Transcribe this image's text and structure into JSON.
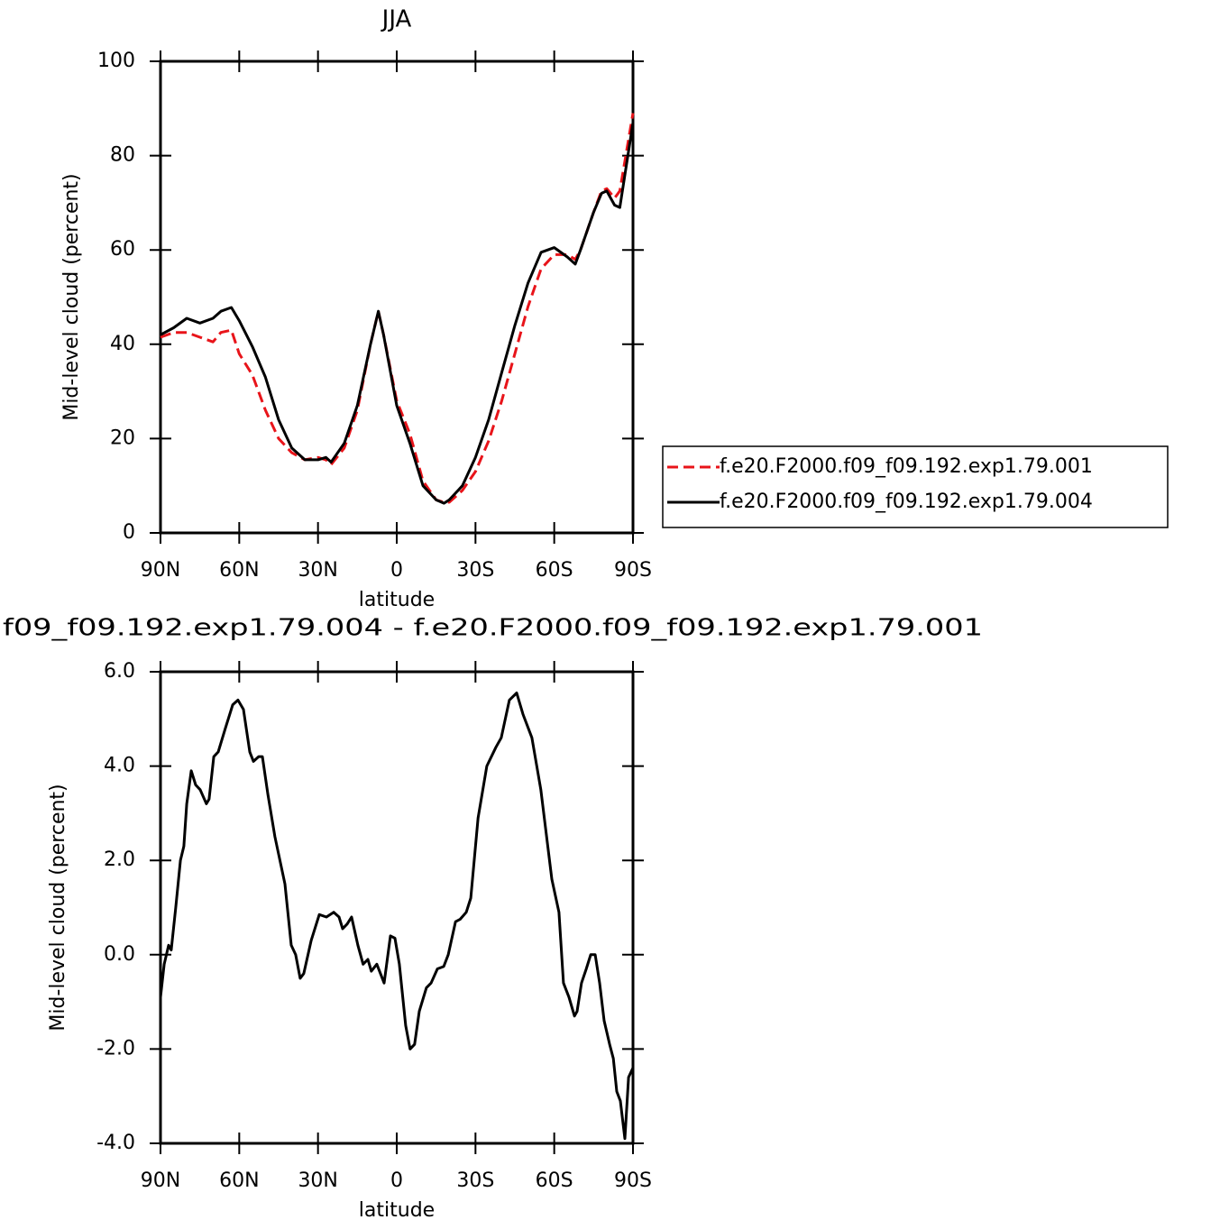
{
  "chart_data": [
    {
      "type": "line",
      "title": "JJA",
      "xlabel": "latitude",
      "ylabel": "Mid-level cloud (percent)",
      "xlim": [
        90,
        -90
      ],
      "ylim": [
        0,
        100
      ],
      "xticks": [
        {
          "value": 90,
          "label": "90N"
        },
        {
          "value": 60,
          "label": "60N"
        },
        {
          "value": 30,
          "label": "30N"
        },
        0,
        {
          "value": -30,
          "label": "30S"
        },
        {
          "value": -60,
          "label": "60S"
        },
        {
          "value": -90,
          "label": "90S"
        }
      ],
      "yticks": [
        0,
        20,
        40,
        60,
        80,
        100
      ],
      "grid": false,
      "legend": "right",
      "x": [
        90,
        85,
        80,
        75,
        70,
        67,
        63,
        60,
        55,
        50,
        45,
        40,
        35,
        30,
        27,
        25,
        20,
        15,
        10,
        7,
        5,
        0,
        -5,
        -10,
        -15,
        -18,
        -20,
        -25,
        -30,
        -35,
        -40,
        -45,
        -50,
        -55,
        -60,
        -65,
        -68,
        -70,
        -75,
        -78,
        -80,
        -83,
        -85,
        -90
      ],
      "series": [
        {
          "name": "f.e20.F2000.f09_f09.192.exp1.79.001",
          "color": "#e8141a",
          "dash": "dashed",
          "values": [
            41.5,
            42.5,
            42.5,
            41.5,
            40.5,
            42.5,
            43,
            38,
            33.5,
            26,
            20,
            17,
            15.5,
            16,
            15.5,
            14.5,
            18,
            26,
            40,
            47,
            42,
            28,
            21,
            11,
            7,
            6.5,
            6.5,
            9,
            13,
            19.5,
            28,
            38,
            48,
            56,
            59,
            59,
            58,
            60,
            68,
            72.5,
            73,
            71,
            72.5,
            89
          ]
        },
        {
          "name": "f.e20.F2000.f09_f09.192.exp1.79.004",
          "color": "#000000",
          "dash": "solid",
          "values": [
            42,
            43.5,
            45.5,
            44.5,
            45.5,
            47,
            47.8,
            45,
            39.5,
            33,
            24,
            18,
            15.5,
            15.5,
            16,
            15,
            19,
            27,
            40,
            47,
            42,
            27,
            19,
            10,
            7,
            6.3,
            7,
            10,
            16,
            24,
            34,
            44,
            53,
            59.5,
            60.5,
            58.5,
            57,
            60,
            68,
            72,
            72.5,
            69.5,
            69,
            87
          ]
        }
      ]
    },
    {
      "type": "line",
      "title": "f09_f09.192.exp1.79.004 - f.e20.F2000.f09_f09.192.exp1.79.001",
      "xlabel": "latitude",
      "ylabel": "Mid-level cloud (percent)",
      "xlim": [
        90,
        -90
      ],
      "ylim": [
        -4,
        6
      ],
      "xticks": [
        {
          "value": 90,
          "label": "90N"
        },
        {
          "value": 60,
          "label": "60N"
        },
        {
          "value": 30,
          "label": "30N"
        },
        0,
        {
          "value": -30,
          "label": "30S"
        },
        {
          "value": -60,
          "label": "60S"
        },
        {
          "value": -90,
          "label": "90S"
        }
      ],
      "yticks": [
        {
          "value": -4,
          "label": "-4.0"
        },
        {
          "value": -2,
          "label": "-2.0"
        },
        {
          "value": 0,
          "label": "0.0"
        },
        {
          "value": 2,
          "label": "2.0"
        },
        {
          "value": 4,
          "label": "4.0"
        },
        {
          "value": 6,
          "label": "6.0"
        }
      ],
      "grid": false,
      "color": "#000000",
      "x": [
        90,
        88.6,
        86.9,
        85.9,
        84.2,
        82.4,
        81.1,
        80,
        78.3,
        76.6,
        74.9,
        72.5,
        71.5,
        69.7,
        68,
        65.3,
        62.5,
        60.5,
        58.4,
        56,
        54.6,
        52.6,
        51.2,
        49.1,
        46.4,
        42.6,
        40.2,
        38.5,
        36.8,
        35.4,
        32.6,
        29.5,
        26.8,
        24,
        22,
        20.6,
        18.9,
        17.2,
        14.8,
        12.8,
        11,
        9.7,
        7.6,
        4.8,
        2.4,
        0.7,
        -1,
        -3.4,
        -5.1,
        -6.8,
        -8.6,
        -11.3,
        -13.1,
        -15.5,
        -17.9,
        -19.6,
        -22.4,
        -24.1,
        -26.5,
        -28.2,
        -31,
        -34.3,
        -37.8,
        -39.8,
        -42.9,
        -45.7,
        -48.1,
        -51.5,
        -54.9,
        -59.1,
        -61.8,
        -63.5,
        -65.6,
        -67.7,
        -68.7,
        -70.4,
        -72.2,
        -73.9,
        -75.6,
        -77.3,
        -79,
        -81.1,
        -82.5,
        -83.8,
        -85.2,
        -86.9,
        -88.3,
        -90
      ],
      "values": [
        -0.9,
        -0.2,
        0.2,
        0.1,
        1,
        2,
        2.3,
        3.2,
        3.9,
        3.6,
        3.5,
        3.2,
        3.3,
        4.2,
        4.3,
        4.8,
        5.3,
        5.4,
        5.2,
        4.3,
        4.1,
        4.2,
        4.2,
        3.4,
        2.5,
        1.5,
        0.2,
        0,
        -0.5,
        -0.4,
        0.3,
        0.85,
        0.8,
        0.9,
        0.8,
        0.55,
        0.65,
        0.8,
        0.2,
        -0.2,
        -0.1,
        -0.35,
        -0.2,
        -0.6,
        0.4,
        0.35,
        -0.2,
        -1.5,
        -2,
        -1.9,
        -1.2,
        -0.7,
        -0.6,
        -0.3,
        -0.25,
        0,
        0.7,
        0.75,
        0.9,
        1.2,
        2.9,
        4,
        4.4,
        4.6,
        5.4,
        5.55,
        5.1,
        4.6,
        3.5,
        1.6,
        0.9,
        -0.6,
        -0.9,
        -1.3,
        -1.2,
        -0.6,
        -0.3,
        0,
        0,
        -0.6,
        -1.4,
        -1.9,
        -2.2,
        -2.9,
        -3.1,
        -3.9,
        -2.6,
        -2.4
      ]
    }
  ]
}
